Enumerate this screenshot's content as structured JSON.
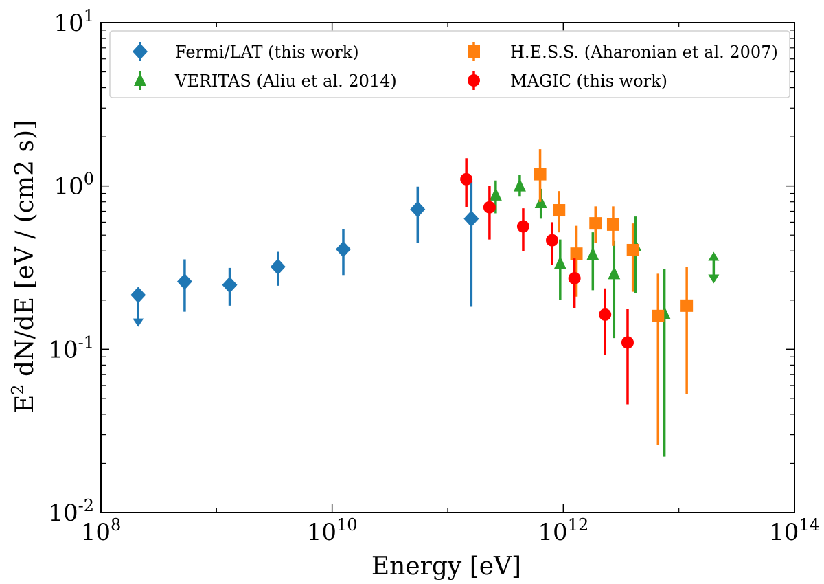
{
  "chart_data": {
    "type": "scatter",
    "xscale": "log",
    "yscale": "log",
    "xlim": [
      100000000.0,
      100000000000000.0
    ],
    "ylim": [
      0.01,
      10
    ],
    "xlabel": "Energy [eV]",
    "ylabel": "E² dN/dE [eV / (cm2 s)]",
    "x_ticks": [
      {
        "value": 100000000.0,
        "base": "10",
        "exp": "8"
      },
      {
        "value": 10000000000.0,
        "base": "10",
        "exp": "10"
      },
      {
        "value": 1000000000000.0,
        "base": "10",
        "exp": "12"
      },
      {
        "value": 100000000000000.0,
        "base": "10",
        "exp": "14"
      }
    ],
    "y_ticks": [
      {
        "value": 0.01,
        "base": "10",
        "exp": "-2"
      },
      {
        "value": 0.1,
        "base": "10",
        "exp": "-1"
      },
      {
        "value": 1,
        "base": "10",
        "exp": "0"
      },
      {
        "value": 10,
        "base": "10",
        "exp": "1"
      }
    ],
    "legend_location": "top",
    "series": [
      {
        "name": "Fermi/LAT (this work)",
        "marker": "diamond",
        "color": "#1f77b4",
        "points": [
          {
            "x": 210000000.0,
            "y": 0.215,
            "lo": 0.14,
            "hi": 0.215,
            "uplim": true
          },
          {
            "x": 530000000.0,
            "y": 0.26,
            "lo": 0.17,
            "hi": 0.355
          },
          {
            "x": 1300000000.0,
            "y": 0.248,
            "lo": 0.185,
            "hi": 0.315
          },
          {
            "x": 3400000000.0,
            "y": 0.32,
            "lo": 0.245,
            "hi": 0.395
          },
          {
            "x": 12500000000.0,
            "y": 0.41,
            "lo": 0.285,
            "hi": 0.545
          },
          {
            "x": 55000000000.0,
            "y": 0.72,
            "lo": 0.45,
            "hi": 0.99
          },
          {
            "x": 160000000000.0,
            "y": 0.63,
            "lo": 0.182,
            "hi": 1.08
          }
        ]
      },
      {
        "name": "VERITAS (Aliu et al. 2014)",
        "marker": "triangle",
        "color": "#2ca02c",
        "points": [
          {
            "x": 260000000000.0,
            "y": 0.88,
            "lo": 0.68,
            "hi": 1.08
          },
          {
            "x": 420000000000.0,
            "y": 1.0,
            "lo": 0.86,
            "hi": 1.17
          },
          {
            "x": 640000000000.0,
            "y": 0.79,
            "lo": 0.63,
            "hi": 0.96
          },
          {
            "x": 940000000000.0,
            "y": 0.335,
            "lo": 0.2,
            "hi": 0.47
          },
          {
            "x": 1800000000000.0,
            "y": 0.38,
            "lo": 0.23,
            "hi": 0.52
          },
          {
            "x": 2750000000000.0,
            "y": 0.29,
            "lo": 0.117,
            "hi": 0.46
          },
          {
            "x": 4200000000000.0,
            "y": 0.43,
            "lo": 0.22,
            "hi": 0.65
          },
          {
            "x": 7500000000000.0,
            "y": 0.165,
            "lo": 0.022,
            "hi": 0.31
          },
          {
            "x": 20000000000000.0,
            "y": 0.38,
            "lo": 0.24,
            "hi": 0.38,
            "range": true
          }
        ]
      },
      {
        "name": "H.E.S.S. (Aharonian et al. 2007)",
        "marker": "square",
        "color": "#ff7f0e",
        "points": [
          {
            "x": 630000000000.0,
            "y": 1.18,
            "lo": 0.8,
            "hi": 1.68
          },
          {
            "x": 920000000000.0,
            "y": 0.71,
            "lo": 0.52,
            "hi": 0.93
          },
          {
            "x": 1300000000000.0,
            "y": 0.385,
            "lo": 0.21,
            "hi": 0.57
          },
          {
            "x": 1900000000000.0,
            "y": 0.59,
            "lo": 0.45,
            "hi": 0.75
          },
          {
            "x": 2700000000000.0,
            "y": 0.58,
            "lo": 0.43,
            "hi": 0.75
          },
          {
            "x": 4000000000000.0,
            "y": 0.405,
            "lo": 0.225,
            "hi": 0.59
          },
          {
            "x": 6600000000000.0,
            "y": 0.16,
            "lo": 0.026,
            "hi": 0.29
          },
          {
            "x": 11700000000000.0,
            "y": 0.185,
            "lo": 0.053,
            "hi": 0.32
          }
        ]
      },
      {
        "name": "MAGIC (this work)",
        "marker": "circle",
        "color": "#ff0000",
        "points": [
          {
            "x": 145000000000.0,
            "y": 1.1,
            "lo": 0.74,
            "hi": 1.48
          },
          {
            "x": 230000000000.0,
            "y": 0.74,
            "lo": 0.47,
            "hi": 1.0
          },
          {
            "x": 450000000000.0,
            "y": 0.565,
            "lo": 0.4,
            "hi": 0.73
          },
          {
            "x": 800000000000.0,
            "y": 0.465,
            "lo": 0.33,
            "hi": 0.6
          },
          {
            "x": 1250000000000.0,
            "y": 0.272,
            "lo": 0.178,
            "hi": 0.36
          },
          {
            "x": 2300000000000.0,
            "y": 0.163,
            "lo": 0.092,
            "hi": 0.236
          },
          {
            "x": 3600000000000.0,
            "y": 0.11,
            "lo": 0.046,
            "hi": 0.176
          }
        ]
      }
    ]
  }
}
